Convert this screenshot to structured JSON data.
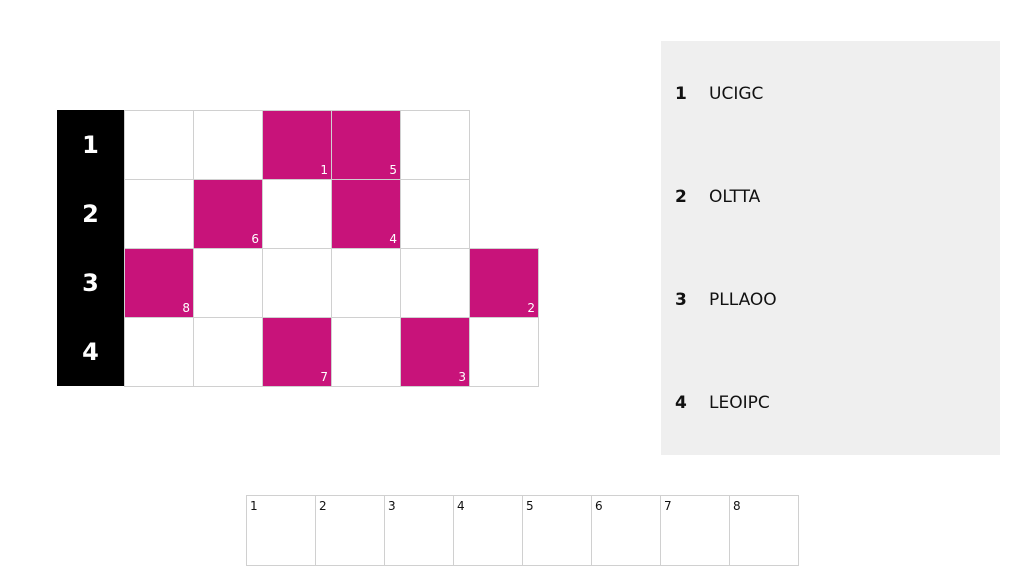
{
  "colors": {
    "filled": "#c8137a",
    "label_bg": "#000000",
    "panel_bg": "#efefef"
  },
  "grid": {
    "rows": [
      {
        "label": "1",
        "cells": [
          {
            "filled": false
          },
          {
            "filled": false
          },
          {
            "filled": true,
            "number": "1"
          },
          {
            "filled": true,
            "number": "5"
          },
          {
            "filled": false
          }
        ]
      },
      {
        "label": "2",
        "cells": [
          {
            "filled": false
          },
          {
            "filled": true,
            "number": "6"
          },
          {
            "filled": false
          },
          {
            "filled": true,
            "number": "4"
          },
          {
            "filled": false
          }
        ]
      },
      {
        "label": "3",
        "cells": [
          {
            "filled": true,
            "number": "8"
          },
          {
            "filled": false
          },
          {
            "filled": false
          },
          {
            "filled": false
          },
          {
            "filled": false
          },
          {
            "filled": true,
            "number": "2"
          }
        ]
      },
      {
        "label": "4",
        "cells": [
          {
            "filled": false
          },
          {
            "filled": false
          },
          {
            "filled": true,
            "number": "7"
          },
          {
            "filled": false
          },
          {
            "filled": true,
            "number": "3"
          },
          {
            "filled": false
          }
        ]
      }
    ]
  },
  "clues": [
    {
      "number": "1",
      "text": "UCIGC"
    },
    {
      "number": "2",
      "text": "OLTTA"
    },
    {
      "number": "3",
      "text": "PLLAOO"
    },
    {
      "number": "4",
      "text": "LEOIPC"
    }
  ],
  "answer_boxes": [
    "1",
    "2",
    "3",
    "4",
    "5",
    "6",
    "7",
    "8"
  ]
}
